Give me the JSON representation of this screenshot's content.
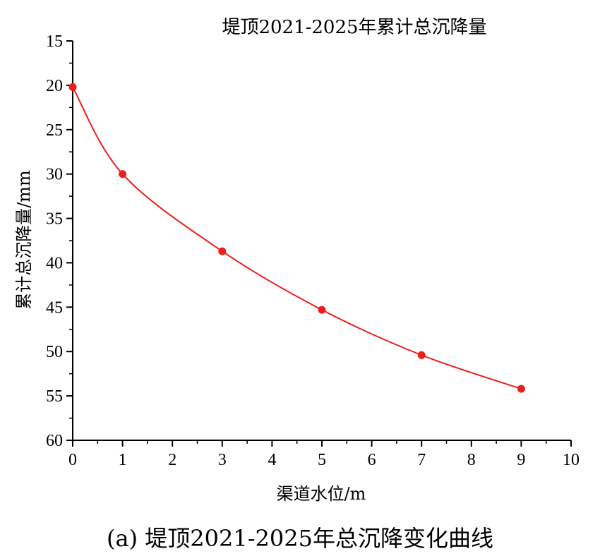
{
  "chart_data": {
    "type": "line",
    "title": "堤顶2021-2025年累计总沉降量",
    "xlabel": "渠道水位/m",
    "ylabel": "累计总沉降量/mm",
    "x": [
      0,
      1,
      3,
      5,
      7,
      9
    ],
    "series": [
      {
        "values": [
          20.2,
          30.0,
          38.7,
          45.3,
          50.4,
          54.2
        ]
      }
    ],
    "xlim": [
      0,
      10
    ],
    "ylim": [
      15,
      60
    ],
    "y_inverted": true,
    "xticks": [
      0,
      1,
      2,
      3,
      4,
      5,
      6,
      7,
      8,
      9,
      10
    ],
    "yticks": [
      15,
      20,
      25,
      30,
      35,
      40,
      45,
      50,
      55,
      60
    ],
    "grid": false,
    "marker": "circle",
    "line_color": "#ee1c1c"
  },
  "caption": "(a) 堤顶2021-2025年总沉降变化曲线"
}
